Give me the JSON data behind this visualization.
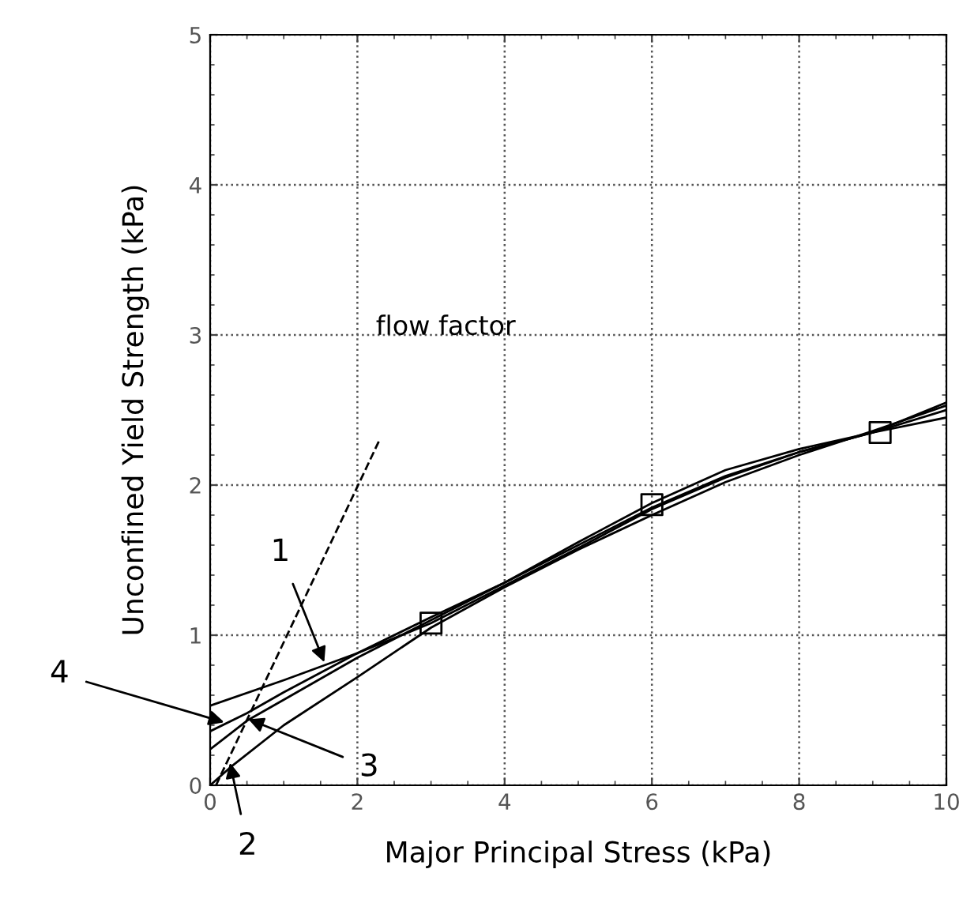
{
  "chart_data": {
    "type": "line",
    "xlabel": "Major Principal Stress (kPa)",
    "ylabel": "Unconfined Yield Strength (kPa)",
    "xlim": [
      0,
      10
    ],
    "ylim": [
      0,
      5
    ],
    "xticks": [
      0,
      2,
      4,
      6,
      8,
      10
    ],
    "yticks": [
      0,
      1,
      2,
      3,
      4,
      5
    ],
    "grid": true,
    "legend": false,
    "series": [
      {
        "color": "#000000",
        "x": [
          0,
          1,
          2,
          3,
          4,
          5,
          6,
          7,
          8,
          9,
          10
        ],
        "values": [
          0.53,
          0.7,
          0.88,
          1.08,
          1.33,
          1.58,
          1.84,
          2.05,
          2.22,
          2.35,
          2.45
        ]
      },
      {
        "color": "#000000",
        "x": [
          0,
          0.3,
          1,
          2,
          3,
          4,
          5,
          6,
          7,
          8,
          9,
          10
        ],
        "values": [
          0,
          0.13,
          0.4,
          0.72,
          1.05,
          1.32,
          1.57,
          1.8,
          2.02,
          2.2,
          2.36,
          2.53
        ]
      },
      {
        "color": "#000000",
        "x": [
          0,
          0.5,
          1,
          2,
          3,
          4,
          5,
          6,
          7,
          8,
          9,
          10
        ],
        "values": [
          0.24,
          0.43,
          0.57,
          0.85,
          1.1,
          1.35,
          1.6,
          1.85,
          2.06,
          2.22,
          2.35,
          2.5
        ]
      },
      {
        "color": "#000000",
        "x": [
          0,
          0.5,
          1,
          2,
          3,
          4,
          5,
          6,
          7,
          8,
          9,
          10
        ],
        "values": [
          0.36,
          0.48,
          0.62,
          0.88,
          1.12,
          1.35,
          1.62,
          1.88,
          2.1,
          2.24,
          2.35,
          2.55
        ]
      },
      {
        "type": "line",
        "line_style": "dashed",
        "color": "#000000",
        "x": [
          0.08,
          2.3
        ],
        "values": [
          0,
          2.3
        ]
      },
      {
        "type": "scatter",
        "marker": "square",
        "color": "#000000",
        "x": [
          3,
          6,
          9.1
        ],
        "values": [
          1.08,
          1.87,
          2.35
        ]
      }
    ],
    "annotations": [
      {
        "text": "1",
        "x": 1.55,
        "y": 0.82
      },
      {
        "text": "2",
        "x": 0.27,
        "y": 0.15
      },
      {
        "text": "3",
        "x": 0.52,
        "y": 0.44
      },
      {
        "text": "4",
        "x": 0.19,
        "y": 0.42
      },
      "flow factor"
    ]
  }
}
